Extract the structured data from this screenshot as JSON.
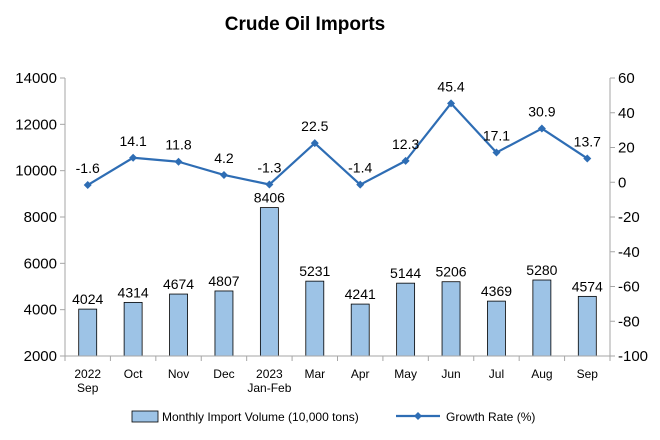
{
  "chart_data": {
    "type": "bar",
    "title": "Crude Oil Imports",
    "categories": [
      [
        "2022",
        "Sep"
      ],
      [
        "Oct"
      ],
      [
        "Nov"
      ],
      [
        "Dec"
      ],
      [
        "2023",
        "Jan-Feb"
      ],
      [
        "Mar"
      ],
      [
        "Apr"
      ],
      [
        "May"
      ],
      [
        "Jun"
      ],
      [
        "Jul"
      ],
      [
        "Aug"
      ],
      [
        "Sep"
      ]
    ],
    "series": [
      {
        "name": "Monthly Import Volume (10,000 tons)",
        "type": "bar",
        "axis": "left",
        "values": [
          4024,
          4314,
          4674,
          4807,
          8406,
          5231,
          4241,
          5144,
          5206,
          4369,
          5280,
          4574
        ]
      },
      {
        "name": "Growth Rate (%)",
        "type": "line",
        "axis": "right",
        "values": [
          -1.6,
          14.1,
          11.8,
          4.2,
          -1.3,
          22.5,
          -1.4,
          12.3,
          45.4,
          17.1,
          30.9,
          13.7
        ]
      }
    ],
    "y_left": {
      "min": 2000,
      "max": 14000,
      "step": 2000
    },
    "y_right": {
      "min": -100,
      "max": 60,
      "step": 20
    },
    "grid": false,
    "legend_position": "bottom",
    "colors": {
      "bar_fill": "#9dc3e6",
      "bar_stroke": "#000000",
      "line": "#2e6db4"
    }
  }
}
